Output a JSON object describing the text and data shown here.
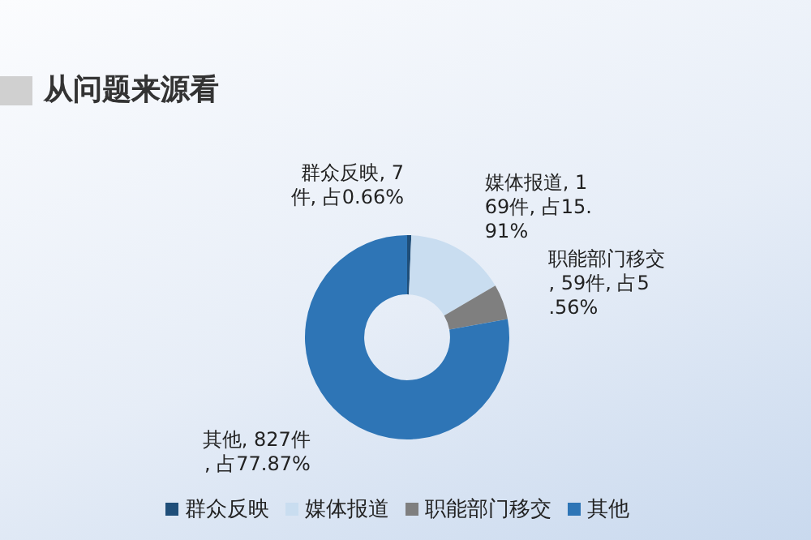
{
  "chart_data": {
    "type": "donut",
    "title": "从问题来源看",
    "categories": [
      "群众反映",
      "媒体报道",
      "职能部门移交",
      "其他"
    ],
    "values": [
      7,
      169,
      59,
      827
    ],
    "colors": [
      "#1f4e79",
      "#c9ddf0",
      "#7f7f7f",
      "#2e75b6"
    ],
    "value_labels": [
      "群众反映, 7件, 占0.66%",
      "媒体报道, 169件, 占15.91%",
      "职能部门移交, 59件, 占5.56%",
      "其他, 827件, 占77.87%"
    ],
    "legend": "bottom"
  }
}
